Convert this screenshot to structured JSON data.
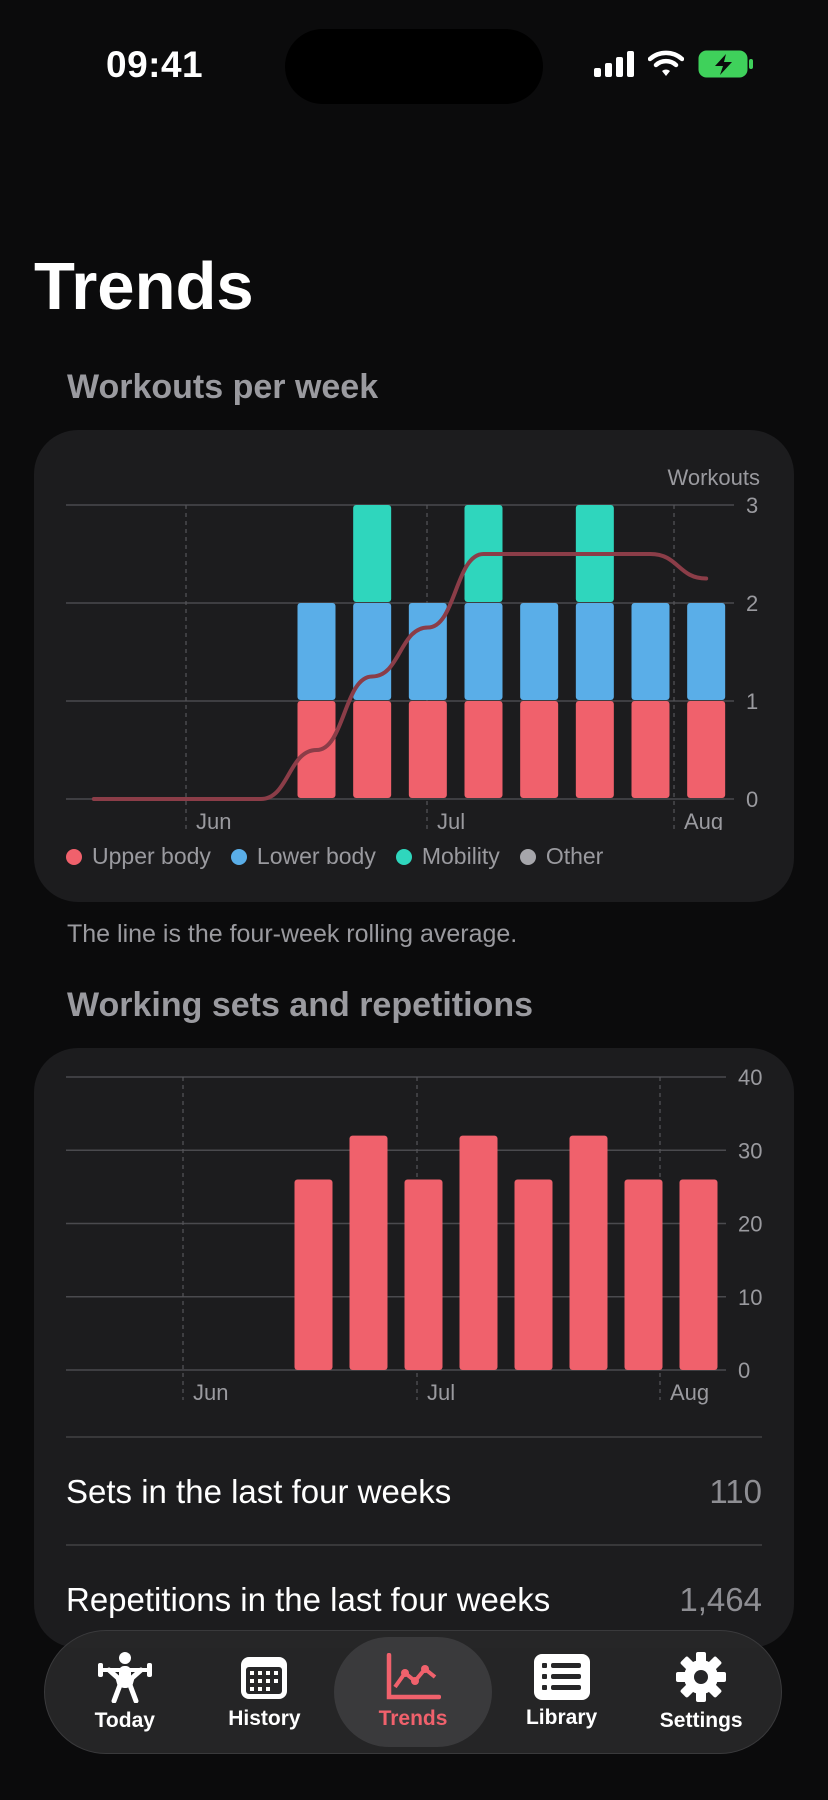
{
  "status": {
    "time": "09:41"
  },
  "page": {
    "title": "Trends"
  },
  "workouts": {
    "section_title": "Workouts per week",
    "note": "The line is the four-week rolling average.",
    "legend": [
      {
        "label": "Upper body",
        "color": "#f0616c"
      },
      {
        "label": "Lower body",
        "color": "#5aaee8"
      },
      {
        "label": "Mobility",
        "color": "#2fd6bd"
      },
      {
        "label": "Other",
        "color": "#a6a6ab"
      }
    ]
  },
  "sets": {
    "section_title": "Working sets and repetitions",
    "stats": [
      {
        "label": "Sets in the last four weeks",
        "value": "110"
      },
      {
        "label": "Repetitions in the last four weeks",
        "value": "1,464"
      }
    ]
  },
  "tabbar": {
    "items": [
      {
        "label": "Today",
        "icon": "weightlifter-icon"
      },
      {
        "label": "History",
        "icon": "calendar-icon"
      },
      {
        "label": "Trends",
        "icon": "chart-icon",
        "active": true
      },
      {
        "label": "Library",
        "icon": "list-icon"
      },
      {
        "label": "Settings",
        "icon": "gear-icon"
      }
    ]
  },
  "chart_data": [
    {
      "type": "bar",
      "stacked": true,
      "ylabel": "Workouts",
      "ylim": [
        0,
        3
      ],
      "yticks": [
        "0",
        "1",
        "2",
        "3"
      ],
      "xtick_labels": [
        "Jun",
        "Jul",
        "Aug"
      ],
      "categories": [
        "wk1",
        "wk2",
        "wk3",
        "wk4",
        "wk5",
        "wk6",
        "wk7",
        "wk8",
        "wk9",
        "wk10",
        "wk11",
        "wk12"
      ],
      "series": [
        {
          "name": "Upper body",
          "color": "#f0616c",
          "values": [
            0,
            0,
            0,
            0,
            1,
            1,
            1,
            1,
            1,
            1,
            1,
            1
          ]
        },
        {
          "name": "Lower body",
          "color": "#5aaee8",
          "values": [
            0,
            0,
            0,
            0,
            1,
            1,
            1,
            1,
            1,
            1,
            1,
            1
          ]
        },
        {
          "name": "Mobility",
          "color": "#2fd6bd",
          "values": [
            0,
            0,
            0,
            0,
            0,
            1,
            0,
            1,
            0,
            1,
            0,
            0
          ]
        },
        {
          "name": "Other",
          "color": "#a6a6ab",
          "values": [
            0,
            0,
            0,
            0,
            0,
            0,
            0,
            0,
            0,
            0,
            0,
            0
          ]
        }
      ],
      "line": {
        "color": "#8b3d48",
        "values": [
          0,
          0,
          0,
          0,
          0.5,
          1.25,
          1.75,
          2.5,
          2.5,
          2.5,
          2.5,
          2.25
        ]
      },
      "grid": true
    },
    {
      "type": "bar",
      "ylim": [
        0,
        40
      ],
      "yticks": [
        "0",
        "10",
        "20",
        "30",
        "40"
      ],
      "xtick_labels": [
        "Jun",
        "Jul",
        "Aug"
      ],
      "categories": [
        "wk1",
        "wk2",
        "wk3",
        "wk4",
        "wk5",
        "wk6",
        "wk7",
        "wk8",
        "wk9",
        "wk10",
        "wk11",
        "wk12"
      ],
      "values": [
        0,
        0,
        0,
        0,
        26,
        32,
        26,
        32,
        26,
        32,
        26,
        26
      ],
      "color": "#f0616c",
      "grid": true
    }
  ]
}
